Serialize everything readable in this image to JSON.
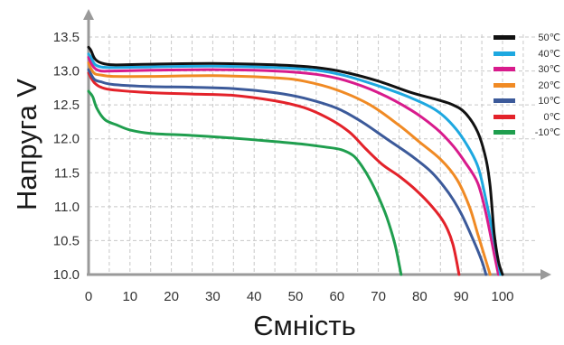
{
  "chart_data": {
    "type": "line",
    "title": "",
    "xlabel": "Ємність",
    "ylabel": "Напруга V",
    "xlim": [
      0,
      108
    ],
    "ylim": [
      10.0,
      13.6
    ],
    "x_ticks": [
      0,
      10,
      20,
      30,
      40,
      50,
      60,
      70,
      80,
      90,
      100
    ],
    "y_ticks": [
      10.0,
      10.5,
      11.0,
      11.5,
      12.0,
      12.5,
      13.0,
      13.5
    ],
    "x_tick_labels": [
      "0",
      "10",
      "20",
      "30",
      "40",
      "50",
      "60",
      "70",
      "80",
      "90",
      "100"
    ],
    "y_tick_labels": [
      "10.0",
      "10.5",
      "11.0",
      "11.5",
      "12.0",
      "12.5",
      "13.0",
      "13.5"
    ],
    "grid": true,
    "legend_position": "top-right",
    "series": [
      {
        "name": "50℃",
        "color": "#111111",
        "points": [
          [
            0,
            13.35
          ],
          [
            0.6,
            13.3
          ],
          [
            1.5,
            13.18
          ],
          [
            3,
            13.12
          ],
          [
            6,
            13.09
          ],
          [
            15,
            13.1
          ],
          [
            30,
            13.11
          ],
          [
            45,
            13.09
          ],
          [
            55,
            13.05
          ],
          [
            62,
            12.98
          ],
          [
            70,
            12.85
          ],
          [
            78,
            12.68
          ],
          [
            84,
            12.58
          ],
          [
            88,
            12.5
          ],
          [
            91,
            12.38
          ],
          [
            94,
            12.1
          ],
          [
            96,
            11.7
          ],
          [
            97,
            11.3
          ],
          [
            98,
            10.6
          ],
          [
            99,
            10.2
          ],
          [
            100,
            10.0
          ]
        ]
      },
      {
        "name": "40℃",
        "color": "#1ea8e0",
        "points": [
          [
            0,
            13.25
          ],
          [
            0.6,
            13.2
          ],
          [
            1.5,
            13.1
          ],
          [
            3,
            13.06
          ],
          [
            6,
            13.05
          ],
          [
            15,
            13.06
          ],
          [
            30,
            13.07
          ],
          [
            45,
            13.05
          ],
          [
            55,
            13.01
          ],
          [
            62,
            12.93
          ],
          [
            70,
            12.78
          ],
          [
            78,
            12.6
          ],
          [
            84,
            12.42
          ],
          [
            88,
            12.2
          ],
          [
            91,
            11.95
          ],
          [
            94,
            11.6
          ],
          [
            96,
            11.1
          ],
          [
            98,
            10.5
          ],
          [
            99.5,
            10.0
          ]
        ]
      },
      {
        "name": "30℃",
        "color": "#d81b8c",
        "points": [
          [
            0,
            13.2
          ],
          [
            0.6,
            13.12
          ],
          [
            1.5,
            13.04
          ],
          [
            3,
            13.0
          ],
          [
            6,
            13.0
          ],
          [
            15,
            13.01
          ],
          [
            30,
            13.02
          ],
          [
            45,
            13.0
          ],
          [
            55,
            12.95
          ],
          [
            62,
            12.86
          ],
          [
            70,
            12.68
          ],
          [
            78,
            12.42
          ],
          [
            84,
            12.15
          ],
          [
            88,
            11.9
          ],
          [
            91,
            11.65
          ],
          [
            94,
            11.35
          ],
          [
            96,
            10.9
          ],
          [
            98,
            10.3
          ],
          [
            99,
            10.0
          ]
        ]
      },
      {
        "name": "20℃",
        "color": "#f08a24",
        "points": [
          [
            0,
            13.12
          ],
          [
            0.6,
            13.03
          ],
          [
            1.5,
            12.96
          ],
          [
            3,
            12.94
          ],
          [
            6,
            12.92
          ],
          [
            15,
            12.92
          ],
          [
            30,
            12.93
          ],
          [
            45,
            12.9
          ],
          [
            52,
            12.85
          ],
          [
            60,
            12.72
          ],
          [
            68,
            12.5
          ],
          [
            75,
            12.2
          ],
          [
            80,
            11.95
          ],
          [
            85,
            11.7
          ],
          [
            89,
            11.4
          ],
          [
            92,
            11.0
          ],
          [
            94,
            10.6
          ],
          [
            96,
            10.2
          ],
          [
            97,
            10.0
          ]
        ]
      },
      {
        "name": "10℃",
        "color": "#3c5a9a",
        "points": [
          [
            0,
            13.02
          ],
          [
            0.6,
            12.95
          ],
          [
            1.5,
            12.87
          ],
          [
            3,
            12.84
          ],
          [
            6,
            12.8
          ],
          [
            15,
            12.77
          ],
          [
            25,
            12.76
          ],
          [
            35,
            12.74
          ],
          [
            45,
            12.68
          ],
          [
            52,
            12.6
          ],
          [
            60,
            12.45
          ],
          [
            66,
            12.25
          ],
          [
            72,
            12.0
          ],
          [
            78,
            11.75
          ],
          [
            83,
            11.5
          ],
          [
            87,
            11.2
          ],
          [
            90,
            10.9
          ],
          [
            93,
            10.5
          ],
          [
            95,
            10.2
          ],
          [
            96,
            10.0
          ]
        ]
      },
      {
        "name": "0℃",
        "color": "#e3222a",
        "points": [
          [
            0,
            12.97
          ],
          [
            0.6,
            12.9
          ],
          [
            1.5,
            12.82
          ],
          [
            3,
            12.76
          ],
          [
            6,
            12.72
          ],
          [
            15,
            12.68
          ],
          [
            25,
            12.66
          ],
          [
            35,
            12.64
          ],
          [
            45,
            12.56
          ],
          [
            52,
            12.46
          ],
          [
            58,
            12.3
          ],
          [
            63,
            12.1
          ],
          [
            67,
            11.85
          ],
          [
            71,
            11.62
          ],
          [
            75,
            11.45
          ],
          [
            79,
            11.25
          ],
          [
            83,
            11.0
          ],
          [
            86,
            10.75
          ],
          [
            88,
            10.45
          ],
          [
            89.5,
            10.0
          ]
        ]
      },
      {
        "name": "-10℃",
        "color": "#1f9e4e",
        "points": [
          [
            0,
            12.7
          ],
          [
            1,
            12.62
          ],
          [
            2,
            12.45
          ],
          [
            4,
            12.28
          ],
          [
            7,
            12.2
          ],
          [
            10,
            12.13
          ],
          [
            15,
            12.08
          ],
          [
            25,
            12.05
          ],
          [
            35,
            12.01
          ],
          [
            45,
            11.96
          ],
          [
            52,
            11.92
          ],
          [
            57,
            11.88
          ],
          [
            61,
            11.84
          ],
          [
            64,
            11.75
          ],
          [
            66,
            11.6
          ],
          [
            68,
            11.4
          ],
          [
            70,
            11.15
          ],
          [
            72,
            10.85
          ],
          [
            74,
            10.45
          ],
          [
            75.5,
            10.0
          ]
        ]
      }
    ]
  }
}
